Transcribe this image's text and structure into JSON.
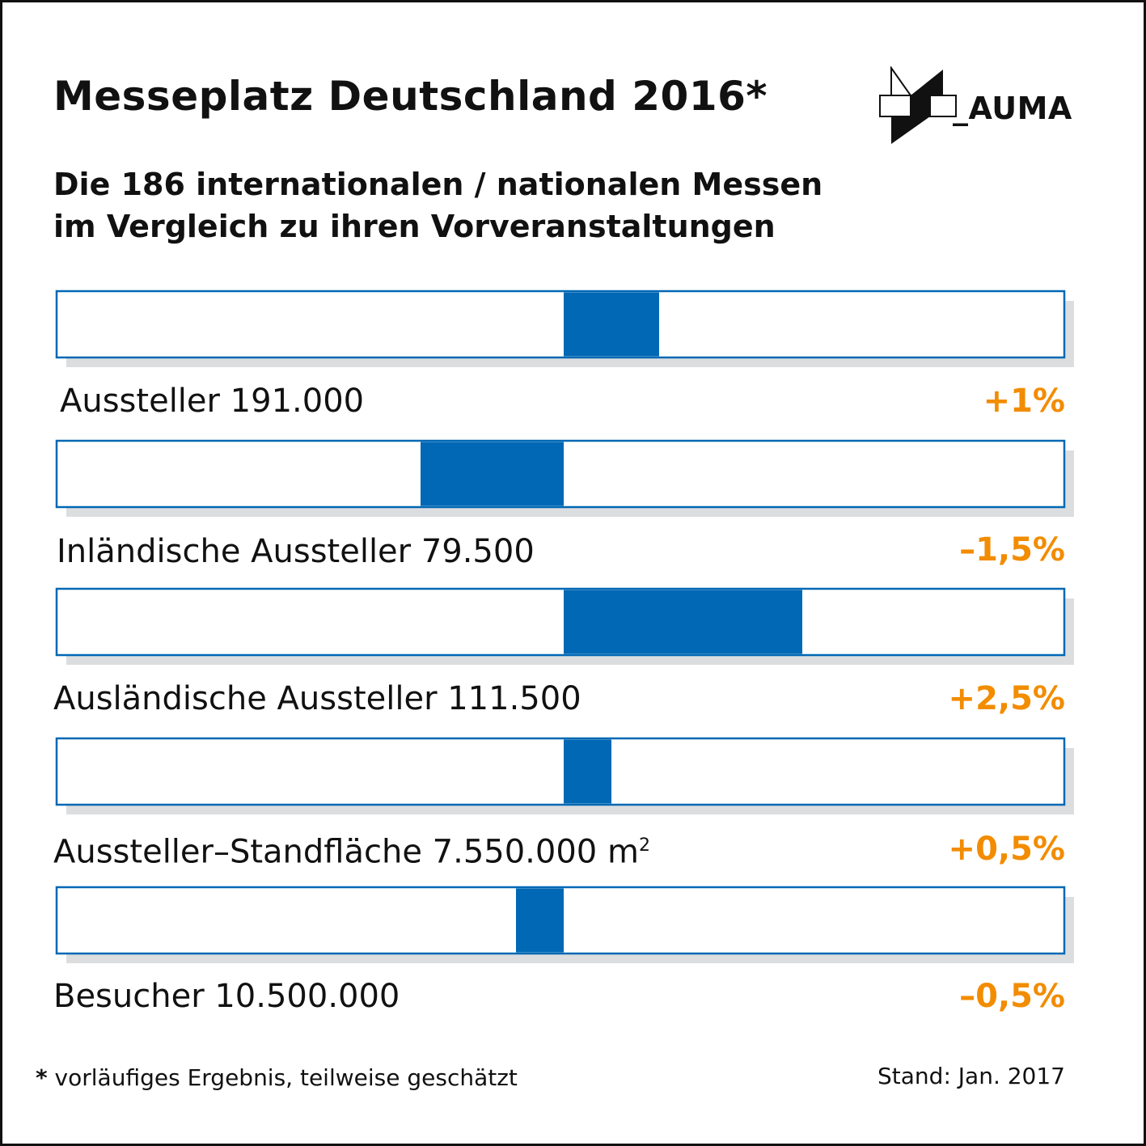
{
  "title": "Messeplatz Deutschland 2016*",
  "subtitle_line1": "Die 186 internationalen / nationalen Messen",
  "subtitle_line2": "im Vergleich zu ihren Vorveranstaltungen",
  "logo": {
    "text": "_AUMA",
    "icon": "auma-logo-icon"
  },
  "colors": {
    "bar": "#0068B4",
    "change": "#F28C00",
    "shadow": "#DCDDDF",
    "frame": "#111111"
  },
  "chart_data": {
    "type": "bar",
    "orientation": "diverging-horizontal",
    "categories": [
      "Aussteller 191.000",
      "Inländische Aussteller 79.500",
      "Ausländische Aussteller 111.500",
      "Aussteller-Standfläche 7.550.000 m²",
      "Besucher 10.500.000"
    ],
    "values": [
      1,
      -1.5,
      2.5,
      0.5,
      -0.5
    ],
    "value_labels": [
      "+1%",
      "–1,5%",
      "+2,5%",
      "+0,5%",
      "–0,5%"
    ],
    "unit": "%",
    "baseline": 0,
    "legend": "none",
    "grid": false
  },
  "rows": [
    {
      "label": "Aussteller 191.000",
      "change": "+1%"
    },
    {
      "label": "Inländische Aussteller 79.500",
      "change": "–1,5%"
    },
    {
      "label": "Ausländische Aussteller 111.500",
      "change": "+2,5%"
    },
    {
      "label_main": "Aussteller–Standfläche 7.550.000 m",
      "label_sup": "2",
      "change": "+0,5%"
    },
    {
      "label": "Besucher 10.500.000",
      "change": "–0,5%"
    }
  ],
  "footnote_marker": "*",
  "footnote": " vorläufiges Ergebnis, teilweise geschätzt",
  "stand": "Stand: Jan. 2017"
}
